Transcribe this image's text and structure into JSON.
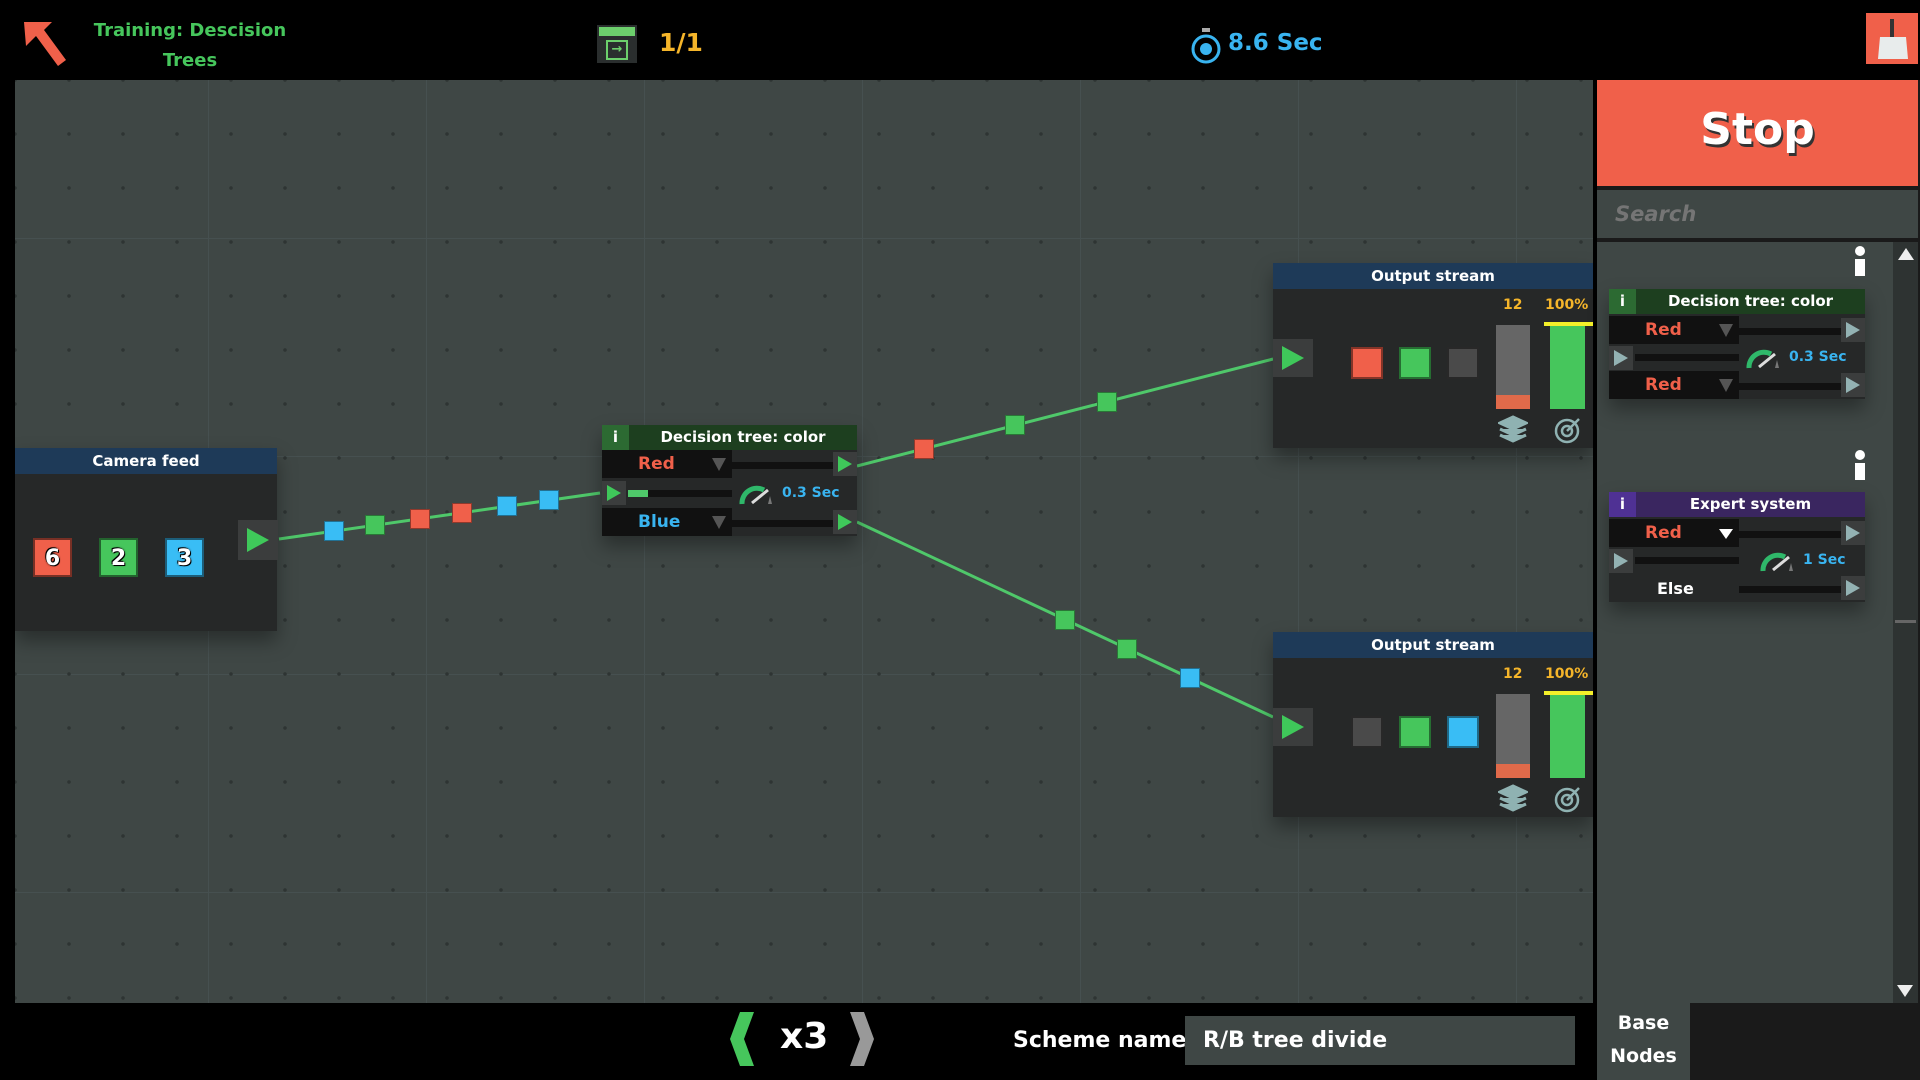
{
  "header": {
    "title": "Training: Descision Trees",
    "title_line1": "Training: Descision",
    "title_line2": "Trees",
    "level": "1/1",
    "timer": "8.6 Sec",
    "icons": [
      "back-arrow-icon",
      "level-icon",
      "stopwatch-icon",
      "broom-icon"
    ]
  },
  "colors": {
    "red": "#f0604a",
    "green": "#46c65c",
    "blue": "#39bdf5",
    "gray": "#4a4a4a",
    "accent_stop": "#f0604a",
    "time_text": "#39b4f0"
  },
  "canvas": {
    "camera_feed": {
      "title": "Camera feed",
      "counts": [
        {
          "color": "red",
          "value": "6"
        },
        {
          "color": "green",
          "value": "2"
        },
        {
          "color": "blue",
          "value": "3"
        }
      ]
    },
    "decision_tree": {
      "title": "Decision tree: color",
      "info": "i",
      "option1": "Red",
      "option2": "Blue",
      "speed": "0.3 Sec"
    },
    "output1": {
      "title": "Output stream",
      "count": "12",
      "percent": "100%",
      "slots": [
        "red",
        "green",
        "gray"
      ],
      "fill_percent": 100
    },
    "output2": {
      "title": "Output stream",
      "count": "12",
      "percent": "100%",
      "slots": [
        "gray",
        "green",
        "blue"
      ],
      "fill_percent": 100
    },
    "wire_items": {
      "input": [
        "blue",
        "green",
        "red",
        "red",
        "blue",
        "blue"
      ],
      "branch1": [
        "red",
        "green",
        "green"
      ],
      "branch2": [
        "green",
        "green",
        "blue"
      ]
    }
  },
  "sidebar": {
    "stop_label": "Stop",
    "search_placeholder": "Search",
    "nodes": [
      {
        "title": "Decision tree: color",
        "info": "i",
        "option1": "Red",
        "option2": "Red",
        "speed": "0.3 Sec"
      },
      {
        "title": "Expert system",
        "info": "i",
        "option1": "Red",
        "option2": "Else",
        "speed": "1 Sec"
      }
    ],
    "tab_line1": "Base",
    "tab_line2": "Nodes"
  },
  "footer": {
    "speed": "x3",
    "scheme_label": "Scheme name :",
    "scheme_value": "R/B tree divide"
  }
}
